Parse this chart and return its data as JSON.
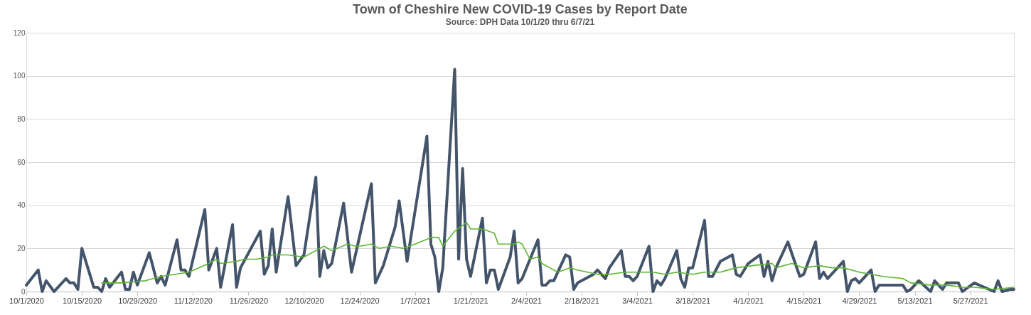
{
  "chart_data": {
    "type": "line",
    "title": "Town of Cheshire New COVID-19 Cases by Report Date",
    "subtitle": "Source: DPH Data  10/1/20 thru 6/7/21",
    "xlim": [
      "2020-10-01",
      "2021-06-07"
    ],
    "xticks": [
      {
        "value": "2020-10-01",
        "label": "10/1/2020"
      },
      {
        "value": "2020-10-15",
        "label": "10/15/2020"
      },
      {
        "value": "2020-10-29",
        "label": "10/29/2020"
      },
      {
        "value": "2020-11-12",
        "label": "11/12/2020"
      },
      {
        "value": "2020-11-26",
        "label": "11/26/2020"
      },
      {
        "value": "2020-12-10",
        "label": "12/10/2020"
      },
      {
        "value": "2020-12-24",
        "label": "12/24/2020"
      },
      {
        "value": "2021-01-07",
        "label": "1/7/2021"
      },
      {
        "value": "2021-01-21",
        "label": "1/21/2021"
      },
      {
        "value": "2021-02-04",
        "label": "2/4/2021"
      },
      {
        "value": "2021-02-18",
        "label": "2/18/2021"
      },
      {
        "value": "2021-03-04",
        "label": "3/4/2021"
      },
      {
        "value": "2021-03-18",
        "label": "3/18/2021"
      },
      {
        "value": "2021-04-01",
        "label": "4/1/2021"
      },
      {
        "value": "2021-04-15",
        "label": "4/15/2021"
      },
      {
        "value": "2021-04-29",
        "label": "4/29/2021"
      },
      {
        "value": "2021-05-13",
        "label": "5/13/2021"
      },
      {
        "value": "2021-05-27",
        "label": "5/27/2021"
      }
    ],
    "ylim": [
      0,
      120
    ],
    "yticks": [
      0,
      20,
      40,
      60,
      80,
      100,
      120
    ],
    "grid": "y",
    "legend": false,
    "series": [
      {
        "color": "#44546a",
        "x": [
          "2020-10-01",
          "2020-10-04",
          "2020-10-05",
          "2020-10-06",
          "2020-10-08",
          "2020-10-11",
          "2020-10-12",
          "2020-10-13",
          "2020-10-14",
          "2020-10-15",
          "2020-10-18",
          "2020-10-19",
          "2020-10-20",
          "2020-10-21",
          "2020-10-22",
          "2020-10-25",
          "2020-10-26",
          "2020-10-27",
          "2020-10-28",
          "2020-10-29",
          "2020-11-01",
          "2020-11-03",
          "2020-11-04",
          "2020-11-05",
          "2020-11-08",
          "2020-11-09",
          "2020-11-10",
          "2020-11-11",
          "2020-11-15",
          "2020-11-16",
          "2020-11-18",
          "2020-11-19",
          "2020-11-22",
          "2020-11-23",
          "2020-11-24",
          "2020-11-29",
          "2020-11-30",
          "2020-12-01",
          "2020-12-02",
          "2020-12-03",
          "2020-12-06",
          "2020-12-08",
          "2020-12-10",
          "2020-12-13",
          "2020-12-14",
          "2020-12-15",
          "2020-12-16",
          "2020-12-17",
          "2020-12-20",
          "2020-12-22",
          "2020-12-27",
          "2020-12-28",
          "2020-12-30",
          "2021-01-02",
          "2021-01-03",
          "2021-01-05",
          "2021-01-10",
          "2021-01-11",
          "2021-01-12",
          "2021-01-13",
          "2021-01-14",
          "2021-01-17",
          "2021-01-18",
          "2021-01-19",
          "2021-01-20",
          "2021-01-21",
          "2021-01-24",
          "2021-01-25",
          "2021-01-26",
          "2021-01-27",
          "2021-01-28",
          "2021-01-31",
          "2021-02-01",
          "2021-02-02",
          "2021-02-03",
          "2021-02-07",
          "2021-02-08",
          "2021-02-09",
          "2021-02-10",
          "2021-02-11",
          "2021-02-14",
          "2021-02-15",
          "2021-02-16",
          "2021-02-17",
          "2021-02-21",
          "2021-02-22",
          "2021-02-24",
          "2021-02-25",
          "2021-02-28",
          "2021-03-01",
          "2021-03-02",
          "2021-03-03",
          "2021-03-04",
          "2021-03-07",
          "2021-03-08",
          "2021-03-09",
          "2021-03-10",
          "2021-03-11",
          "2021-03-14",
          "2021-03-15",
          "2021-03-16",
          "2021-03-17",
          "2021-03-18",
          "2021-03-21",
          "2021-03-22",
          "2021-03-23",
          "2021-03-25",
          "2021-03-28",
          "2021-03-29",
          "2021-03-30",
          "2021-04-01",
          "2021-04-04",
          "2021-04-05",
          "2021-04-06",
          "2021-04-07",
          "2021-04-08",
          "2021-04-11",
          "2021-04-14",
          "2021-04-15",
          "2021-04-18",
          "2021-04-19",
          "2021-04-20",
          "2021-04-21",
          "2021-04-25",
          "2021-04-26",
          "2021-04-27",
          "2021-04-28",
          "2021-04-29",
          "2021-05-02",
          "2021-05-03",
          "2021-05-04",
          "2021-05-10",
          "2021-05-11",
          "2021-05-12",
          "2021-05-14",
          "2021-05-17",
          "2021-05-18",
          "2021-05-20",
          "2021-05-21",
          "2021-05-24",
          "2021-05-25",
          "2021-05-28",
          "2021-06-02",
          "2021-06-03",
          "2021-06-04",
          "2021-06-06",
          "2021-06-07"
        ],
        "values": [
          3,
          10,
          0,
          5,
          0,
          6,
          4,
          4,
          1,
          20,
          2,
          2,
          0,
          6,
          2,
          9,
          1,
          1,
          9,
          3,
          18,
          4,
          7,
          3,
          24,
          10,
          10,
          7,
          38,
          10,
          20,
          2,
          31,
          2,
          11,
          28,
          8,
          12,
          29,
          9,
          44,
          12,
          17,
          53,
          7,
          19,
          11,
          13,
          41,
          9,
          50,
          4,
          12,
          30,
          42,
          14,
          72,
          22,
          16,
          0,
          11,
          103,
          15,
          57,
          15,
          7,
          34,
          4,
          10,
          10,
          1,
          16,
          28,
          4,
          6,
          24,
          3,
          3,
          5,
          5,
          17,
          16,
          1,
          4,
          8,
          10,
          6,
          11,
          19,
          7,
          7,
          5,
          7,
          21,
          0,
          5,
          3,
          6,
          19,
          6,
          2,
          11,
          11,
          33,
          7,
          7,
          14,
          17,
          8,
          7,
          13,
          17,
          7,
          14,
          5,
          11,
          23,
          7,
          8,
          23,
          6,
          9,
          6,
          14,
          0,
          5,
          6,
          4,
          10,
          0,
          3,
          3,
          0,
          1,
          5,
          0,
          5,
          1,
          4,
          4,
          0,
          4,
          0,
          5,
          0,
          1,
          1
        ]
      },
      {
        "color": "#5cb531",
        "x": [
          "2020-10-20",
          "2020-10-25",
          "2020-10-31",
          "2020-11-04",
          "2020-11-11",
          "2020-11-16",
          "2020-11-18",
          "2020-11-19",
          "2020-11-23",
          "2020-11-25",
          "2020-11-28",
          "2020-12-01",
          "2020-12-02",
          "2020-12-06",
          "2020-12-10",
          "2020-12-14",
          "2020-12-15",
          "2020-12-17",
          "2020-12-21",
          "2020-12-23",
          "2020-12-24",
          "2020-12-27",
          "2020-12-29",
          "2021-01-01",
          "2021-01-04",
          "2021-01-07",
          "2021-01-11",
          "2021-01-13",
          "2021-01-14",
          "2021-01-17",
          "2021-01-20",
          "2021-01-21",
          "2021-01-24",
          "2021-01-27",
          "2021-01-28",
          "2021-02-01",
          "2021-02-02",
          "2021-02-03",
          "2021-02-05",
          "2021-02-07",
          "2021-02-08",
          "2021-02-10",
          "2021-02-12",
          "2021-02-15",
          "2021-02-17",
          "2021-02-22",
          "2021-02-25",
          "2021-03-01",
          "2021-03-04",
          "2021-03-08",
          "2021-03-11",
          "2021-03-14",
          "2021-03-18",
          "2021-03-21",
          "2021-03-25",
          "2021-03-29",
          "2021-04-02",
          "2021-04-07",
          "2021-04-08",
          "2021-04-12",
          "2021-04-15",
          "2021-04-19",
          "2021-04-22",
          "2021-04-25",
          "2021-04-29",
          "2021-05-02",
          "2021-05-05",
          "2021-05-10",
          "2021-05-12",
          "2021-05-17",
          "2021-05-21",
          "2021-05-25",
          "2021-05-28",
          "2021-06-02",
          "2021-06-07"
        ],
        "values": [
          4,
          4,
          5,
          7,
          9,
          13,
          15,
          13,
          14,
          15,
          15,
          16,
          17,
          17,
          16,
          20,
          21,
          19,
          22,
          21,
          21,
          22,
          20,
          21,
          20,
          22,
          25,
          25,
          21,
          28,
          32,
          29,
          29,
          27,
          22,
          22,
          23,
          22,
          15,
          16,
          13,
          11,
          9,
          11,
          10,
          8,
          8,
          9,
          9,
          9,
          8,
          9,
          8,
          9,
          9,
          11,
          12,
          13,
          11,
          13,
          11,
          12,
          11,
          11,
          9,
          8,
          7,
          6,
          4,
          3,
          3,
          2,
          2,
          1,
          2
        ]
      }
    ]
  }
}
